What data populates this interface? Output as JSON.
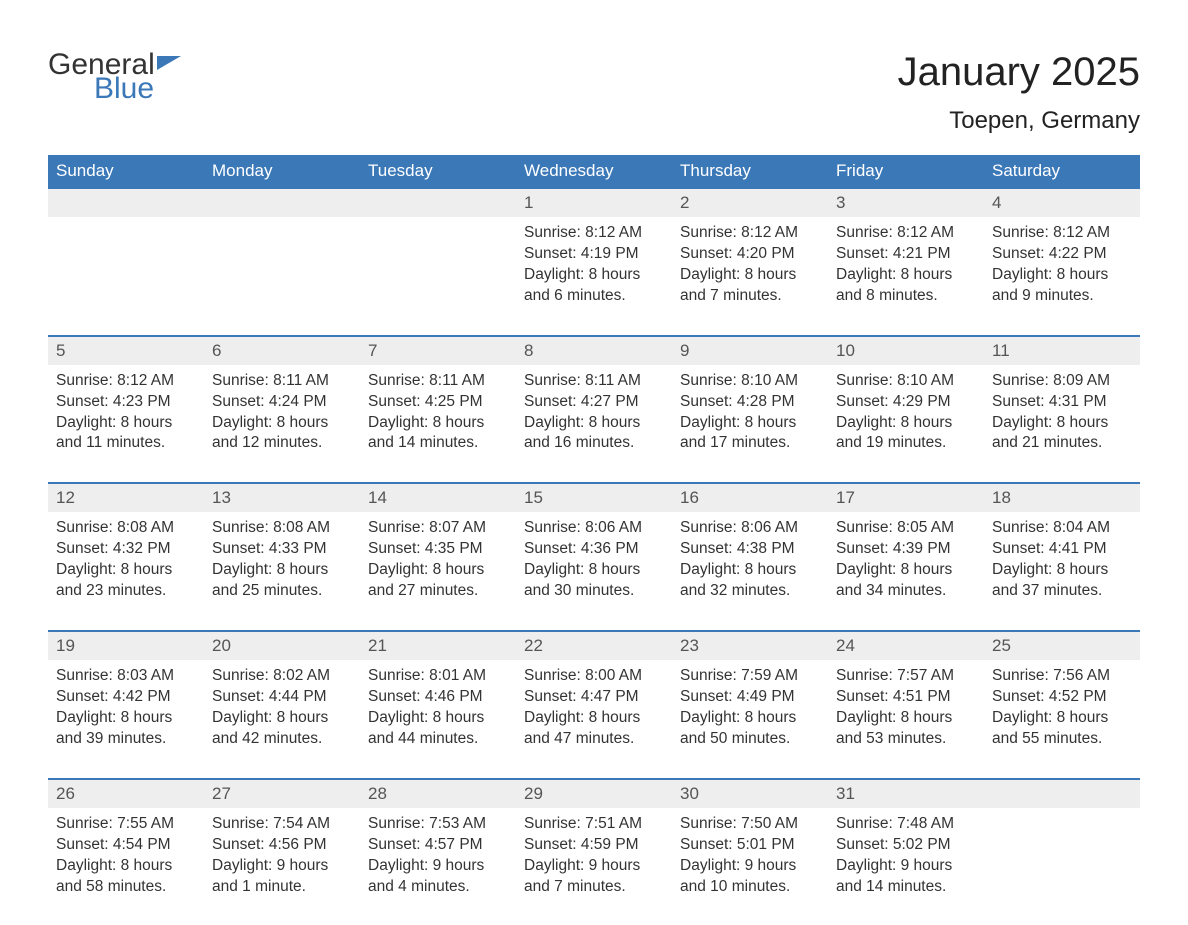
{
  "logo": {
    "line1": "General",
    "line2": "Blue"
  },
  "title": "January 2025",
  "location": "Toepen, Germany",
  "colors": {
    "header_bg": "#3b78b8",
    "header_text": "#ffffff",
    "daynum_bg": "#eeeeee",
    "daynum_border": "#3b78b8",
    "body_text": "#333333",
    "logo_blue": "#3b78b8"
  },
  "day_headers": [
    "Sunday",
    "Monday",
    "Tuesday",
    "Wednesday",
    "Thursday",
    "Friday",
    "Saturday"
  ],
  "weeks": [
    {
      "nums": [
        "",
        "",
        "",
        "1",
        "2",
        "3",
        "4"
      ],
      "cells": [
        null,
        null,
        null,
        {
          "sunrise": "Sunrise: 8:12 AM",
          "sunset": "Sunset: 4:19 PM",
          "dl1": "Daylight: 8 hours",
          "dl2": "and 6 minutes."
        },
        {
          "sunrise": "Sunrise: 8:12 AM",
          "sunset": "Sunset: 4:20 PM",
          "dl1": "Daylight: 8 hours",
          "dl2": "and 7 minutes."
        },
        {
          "sunrise": "Sunrise: 8:12 AM",
          "sunset": "Sunset: 4:21 PM",
          "dl1": "Daylight: 8 hours",
          "dl2": "and 8 minutes."
        },
        {
          "sunrise": "Sunrise: 8:12 AM",
          "sunset": "Sunset: 4:22 PM",
          "dl1": "Daylight: 8 hours",
          "dl2": "and 9 minutes."
        }
      ]
    },
    {
      "nums": [
        "5",
        "6",
        "7",
        "8",
        "9",
        "10",
        "11"
      ],
      "cells": [
        {
          "sunrise": "Sunrise: 8:12 AM",
          "sunset": "Sunset: 4:23 PM",
          "dl1": "Daylight: 8 hours",
          "dl2": "and 11 minutes."
        },
        {
          "sunrise": "Sunrise: 8:11 AM",
          "sunset": "Sunset: 4:24 PM",
          "dl1": "Daylight: 8 hours",
          "dl2": "and 12 minutes."
        },
        {
          "sunrise": "Sunrise: 8:11 AM",
          "sunset": "Sunset: 4:25 PM",
          "dl1": "Daylight: 8 hours",
          "dl2": "and 14 minutes."
        },
        {
          "sunrise": "Sunrise: 8:11 AM",
          "sunset": "Sunset: 4:27 PM",
          "dl1": "Daylight: 8 hours",
          "dl2": "and 16 minutes."
        },
        {
          "sunrise": "Sunrise: 8:10 AM",
          "sunset": "Sunset: 4:28 PM",
          "dl1": "Daylight: 8 hours",
          "dl2": "and 17 minutes."
        },
        {
          "sunrise": "Sunrise: 8:10 AM",
          "sunset": "Sunset: 4:29 PM",
          "dl1": "Daylight: 8 hours",
          "dl2": "and 19 minutes."
        },
        {
          "sunrise": "Sunrise: 8:09 AM",
          "sunset": "Sunset: 4:31 PM",
          "dl1": "Daylight: 8 hours",
          "dl2": "and 21 minutes."
        }
      ]
    },
    {
      "nums": [
        "12",
        "13",
        "14",
        "15",
        "16",
        "17",
        "18"
      ],
      "cells": [
        {
          "sunrise": "Sunrise: 8:08 AM",
          "sunset": "Sunset: 4:32 PM",
          "dl1": "Daylight: 8 hours",
          "dl2": "and 23 minutes."
        },
        {
          "sunrise": "Sunrise: 8:08 AM",
          "sunset": "Sunset: 4:33 PM",
          "dl1": "Daylight: 8 hours",
          "dl2": "and 25 minutes."
        },
        {
          "sunrise": "Sunrise: 8:07 AM",
          "sunset": "Sunset: 4:35 PM",
          "dl1": "Daylight: 8 hours",
          "dl2": "and 27 minutes."
        },
        {
          "sunrise": "Sunrise: 8:06 AM",
          "sunset": "Sunset: 4:36 PM",
          "dl1": "Daylight: 8 hours",
          "dl2": "and 30 minutes."
        },
        {
          "sunrise": "Sunrise: 8:06 AM",
          "sunset": "Sunset: 4:38 PM",
          "dl1": "Daylight: 8 hours",
          "dl2": "and 32 minutes."
        },
        {
          "sunrise": "Sunrise: 8:05 AM",
          "sunset": "Sunset: 4:39 PM",
          "dl1": "Daylight: 8 hours",
          "dl2": "and 34 minutes."
        },
        {
          "sunrise": "Sunrise: 8:04 AM",
          "sunset": "Sunset: 4:41 PM",
          "dl1": "Daylight: 8 hours",
          "dl2": "and 37 minutes."
        }
      ]
    },
    {
      "nums": [
        "19",
        "20",
        "21",
        "22",
        "23",
        "24",
        "25"
      ],
      "cells": [
        {
          "sunrise": "Sunrise: 8:03 AM",
          "sunset": "Sunset: 4:42 PM",
          "dl1": "Daylight: 8 hours",
          "dl2": "and 39 minutes."
        },
        {
          "sunrise": "Sunrise: 8:02 AM",
          "sunset": "Sunset: 4:44 PM",
          "dl1": "Daylight: 8 hours",
          "dl2": "and 42 minutes."
        },
        {
          "sunrise": "Sunrise: 8:01 AM",
          "sunset": "Sunset: 4:46 PM",
          "dl1": "Daylight: 8 hours",
          "dl2": "and 44 minutes."
        },
        {
          "sunrise": "Sunrise: 8:00 AM",
          "sunset": "Sunset: 4:47 PM",
          "dl1": "Daylight: 8 hours",
          "dl2": "and 47 minutes."
        },
        {
          "sunrise": "Sunrise: 7:59 AM",
          "sunset": "Sunset: 4:49 PM",
          "dl1": "Daylight: 8 hours",
          "dl2": "and 50 minutes."
        },
        {
          "sunrise": "Sunrise: 7:57 AM",
          "sunset": "Sunset: 4:51 PM",
          "dl1": "Daylight: 8 hours",
          "dl2": "and 53 minutes."
        },
        {
          "sunrise": "Sunrise: 7:56 AM",
          "sunset": "Sunset: 4:52 PM",
          "dl1": "Daylight: 8 hours",
          "dl2": "and 55 minutes."
        }
      ]
    },
    {
      "nums": [
        "26",
        "27",
        "28",
        "29",
        "30",
        "31",
        ""
      ],
      "cells": [
        {
          "sunrise": "Sunrise: 7:55 AM",
          "sunset": "Sunset: 4:54 PM",
          "dl1": "Daylight: 8 hours",
          "dl2": "and 58 minutes."
        },
        {
          "sunrise": "Sunrise: 7:54 AM",
          "sunset": "Sunset: 4:56 PM",
          "dl1": "Daylight: 9 hours",
          "dl2": "and 1 minute."
        },
        {
          "sunrise": "Sunrise: 7:53 AM",
          "sunset": "Sunset: 4:57 PM",
          "dl1": "Daylight: 9 hours",
          "dl2": "and 4 minutes."
        },
        {
          "sunrise": "Sunrise: 7:51 AM",
          "sunset": "Sunset: 4:59 PM",
          "dl1": "Daylight: 9 hours",
          "dl2": "and 7 minutes."
        },
        {
          "sunrise": "Sunrise: 7:50 AM",
          "sunset": "Sunset: 5:01 PM",
          "dl1": "Daylight: 9 hours",
          "dl2": "and 10 minutes."
        },
        {
          "sunrise": "Sunrise: 7:48 AM",
          "sunset": "Sunset: 5:02 PM",
          "dl1": "Daylight: 9 hours",
          "dl2": "and 14 minutes."
        },
        null
      ]
    }
  ]
}
